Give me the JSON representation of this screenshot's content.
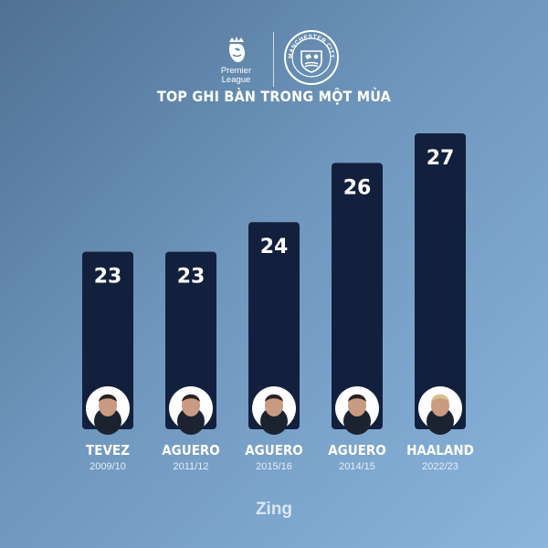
{
  "header": {
    "league_logo_text": "Premier\nLeague",
    "club_logo_text": "MANCHESTER CITY",
    "title": "TOP GHI BÀN TRONG MỘT MÙA"
  },
  "chart_data": {
    "type": "bar",
    "title": "TOP GHI BÀN TRONG MỘT MÙA",
    "categories": [
      "TEVEZ",
      "AGUERO",
      "AGUERO",
      "AGUERO",
      "HAALAND"
    ],
    "seasons": [
      "2009/10",
      "2011/12",
      "2015/16",
      "2014/15",
      "2022/23"
    ],
    "values": [
      23,
      23,
      24,
      26,
      27
    ],
    "ylim": [
      0,
      27
    ],
    "grid": false,
    "bar_color": "#13203d",
    "label_color": "#ffffff"
  },
  "footer": {
    "watermark": "Zing"
  },
  "colors": {
    "background": "#6f96bd",
    "bar": "#13203d",
    "text": "#ffffff",
    "season_text": "#e7eef6"
  }
}
